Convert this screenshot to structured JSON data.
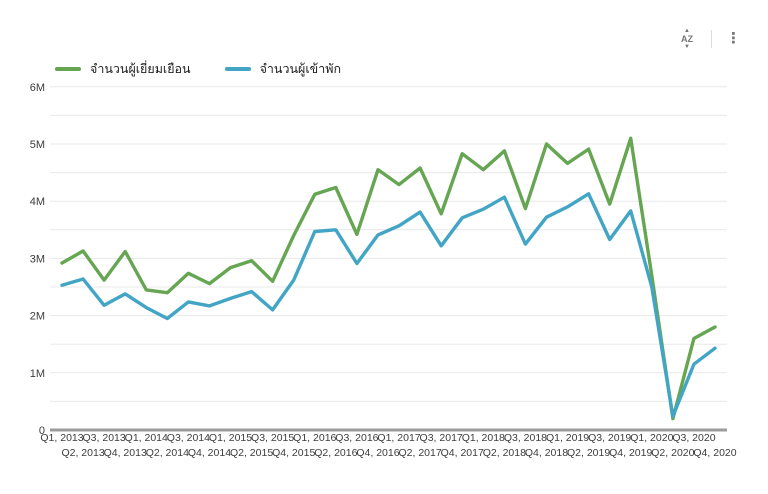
{
  "toolbar": {
    "sort_icon_text": "AZ",
    "menu_icon": "⋮"
  },
  "legend": [
    {
      "label": "จำนวนผู้เยี่ยมเยือน",
      "color": "#66a552"
    },
    {
      "label": "จำนวนผู้เข้าพัก",
      "color": "#42a5c5"
    }
  ],
  "chart_data": {
    "type": "line",
    "unit": "millions",
    "categories": [
      "Q1, 2013",
      "Q2, 2013",
      "Q3, 2013",
      "Q4, 2013",
      "Q1, 2014",
      "Q2, 2014",
      "Q3, 2014",
      "Q4, 2014",
      "Q1, 2015",
      "Q2, 2015",
      "Q3, 2015",
      "Q4, 2015",
      "Q1, 2016",
      "Q2, 2016",
      "Q3, 2016",
      "Q4, 2016",
      "Q1, 2017",
      "Q2, 2017",
      "Q3, 2017",
      "Q4, 2017",
      "Q1, 2018",
      "Q2, 2018",
      "Q3, 2018",
      "Q4, 2018",
      "Q1, 2019",
      "Q2, 2019",
      "Q3, 2019",
      "Q4, 2019",
      "Q1, 2020",
      "Q2, 2020",
      "Q3, 2020",
      "Q4, 2020"
    ],
    "series": [
      {
        "name": "จำนวนผู้เยี่ยมเยือน",
        "color": "#66a552",
        "values": [
          2.92,
          3.13,
          2.62,
          3.12,
          2.45,
          2.4,
          2.74,
          2.56,
          2.84,
          2.96,
          2.6,
          3.4,
          4.12,
          4.24,
          3.42,
          4.55,
          4.29,
          4.58,
          3.78,
          4.83,
          4.55,
          4.88,
          3.87,
          5.0,
          4.66,
          4.91,
          3.95,
          5.1,
          2.7,
          0.2,
          1.6,
          1.8
        ]
      },
      {
        "name": "จำนวนผู้เข้าพัก",
        "color": "#42a5c5",
        "values": [
          2.53,
          2.64,
          2.18,
          2.38,
          2.14,
          1.95,
          2.24,
          2.17,
          2.3,
          2.42,
          2.1,
          2.62,
          3.47,
          3.5,
          2.91,
          3.41,
          3.57,
          3.81,
          3.22,
          3.71,
          3.86,
          4.07,
          3.25,
          3.72,
          3.9,
          4.13,
          3.33,
          3.83,
          2.5,
          0.24,
          1.15,
          1.43
        ]
      }
    ],
    "ylim": [
      0,
      6
    ],
    "y_tick_labels": [
      "0",
      "1M",
      "2M",
      "3M",
      "4M",
      "5M",
      "6M"
    ],
    "y_minor_step": 0.5,
    "grid": "horizontal",
    "legend_position": "top-left",
    "xlabel": "",
    "ylabel": ""
  },
  "style_colors": {
    "gridline": "#e8e8e8",
    "axis_baseline": "#9b9b9b",
    "axis_text": "#3d3d3d"
  }
}
